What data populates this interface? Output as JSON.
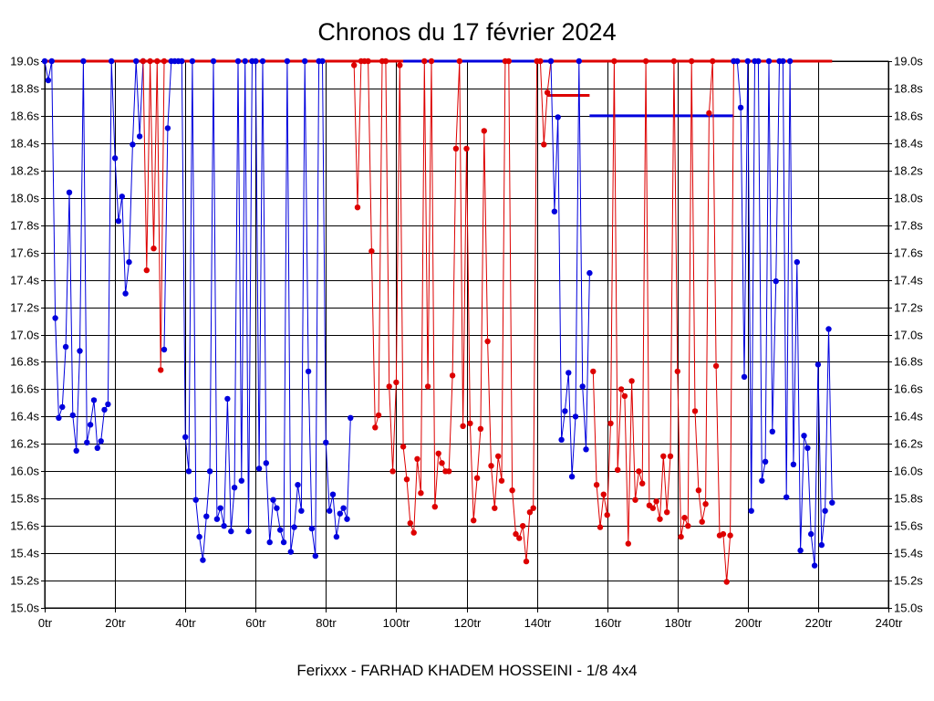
{
  "chart_data": {
    "type": "line",
    "title": "Chronos du 17 février 2024",
    "subtitle": "Ferixxx - FARHAD KHADEM HOSSEINI - 1/8 4x4",
    "x_ticks": [
      "0tr",
      "20tr",
      "40tr",
      "60tr",
      "80tr",
      "100tr",
      "120tr",
      "140tr",
      "160tr",
      "180tr",
      "200tr",
      "220tr",
      "240tr"
    ],
    "y_ticks": [
      "15.0s",
      "15.2s",
      "15.4s",
      "15.6s",
      "15.8s",
      "16.0s",
      "16.2s",
      "16.4s",
      "16.6s",
      "16.8s",
      "17.0s",
      "17.2s",
      "17.4s",
      "17.6s",
      "17.8s",
      "18.0s",
      "18.2s",
      "18.4s",
      "18.6s",
      "18.8s",
      "19.0s"
    ],
    "xlim": [
      0,
      240
    ],
    "ylim": [
      15.0,
      19.0
    ],
    "grid": true,
    "colors": {
      "blue": "#0000dd",
      "red": "#dd0000"
    },
    "series": [
      {
        "color": "blue",
        "points": [
          [
            0,
            19.0
          ],
          [
            1,
            18.86
          ],
          [
            2,
            19.0
          ],
          [
            3,
            17.12
          ],
          [
            4,
            16.39
          ],
          [
            5,
            16.47
          ],
          [
            6,
            16.91
          ],
          [
            7,
            18.04
          ],
          [
            8,
            16.41
          ],
          [
            9,
            16.15
          ],
          [
            10,
            16.88
          ],
          [
            11,
            19.0
          ],
          [
            12,
            16.21
          ],
          [
            13,
            16.34
          ],
          [
            14,
            16.52
          ],
          [
            15,
            16.17
          ],
          [
            16,
            16.22
          ],
          [
            17,
            16.45
          ],
          [
            18,
            16.49
          ],
          [
            19,
            19.0
          ],
          [
            20,
            18.29
          ],
          [
            21,
            17.83
          ],
          [
            22,
            18.01
          ],
          [
            23,
            17.3
          ],
          [
            24,
            17.53
          ],
          [
            25,
            18.39
          ],
          [
            26,
            19.0
          ],
          [
            27,
            18.45
          ],
          [
            28,
            19.0
          ]
        ]
      },
      {
        "color": "red",
        "points": [
          [
            28,
            19.0
          ],
          [
            29,
            17.47
          ],
          [
            30,
            19.0
          ],
          [
            31,
            17.63
          ],
          [
            32,
            19.0
          ],
          [
            33,
            16.74
          ],
          [
            34,
            19.0
          ]
        ]
      },
      {
        "color": "blue",
        "points": [
          [
            34,
            16.89
          ],
          [
            35,
            18.51
          ],
          [
            36,
            19.0
          ],
          [
            37,
            19.0
          ],
          [
            38,
            19.0
          ],
          [
            39,
            19.0
          ],
          [
            40,
            16.25
          ],
          [
            41,
            16.0
          ],
          [
            42,
            19.0
          ],
          [
            43,
            15.79
          ],
          [
            44,
            15.52
          ],
          [
            45,
            15.35
          ],
          [
            46,
            15.67
          ],
          [
            47,
            16.0
          ],
          [
            48,
            19.0
          ],
          [
            49,
            15.65
          ],
          [
            50,
            15.73
          ],
          [
            51,
            15.6
          ],
          [
            52,
            16.53
          ],
          [
            53,
            15.56
          ],
          [
            54,
            15.88
          ],
          [
            55,
            19.0
          ],
          [
            56,
            15.93
          ],
          [
            57,
            19.0
          ],
          [
            58,
            15.56
          ],
          [
            59,
            19.0
          ],
          [
            60,
            19.0
          ],
          [
            61,
            16.02
          ],
          [
            62,
            19.0
          ],
          [
            63,
            16.06
          ],
          [
            64,
            15.48
          ],
          [
            65,
            15.79
          ],
          [
            66,
            15.73
          ],
          [
            67,
            15.57
          ],
          [
            68,
            15.48
          ],
          [
            69,
            19.0
          ],
          [
            70,
            15.41
          ],
          [
            71,
            15.59
          ],
          [
            72,
            15.9
          ],
          [
            73,
            15.71
          ],
          [
            74,
            19.0
          ],
          [
            75,
            16.73
          ],
          [
            76,
            15.58
          ],
          [
            77,
            15.38
          ],
          [
            78,
            19.0
          ],
          [
            79,
            19.0
          ],
          [
            80,
            16.21
          ],
          [
            81,
            15.71
          ],
          [
            82,
            15.83
          ],
          [
            83,
            15.52
          ],
          [
            84,
            15.69
          ],
          [
            85,
            15.73
          ],
          [
            86,
            15.65
          ],
          [
            87,
            16.39
          ]
        ]
      },
      {
        "color": "red",
        "points": [
          [
            88,
            18.97
          ],
          [
            89,
            17.93
          ],
          [
            90,
            19.0
          ],
          [
            91,
            19.0
          ],
          [
            92,
            19.0
          ],
          [
            93,
            17.61
          ],
          [
            94,
            16.32
          ],
          [
            95,
            16.41
          ],
          [
            96,
            19.0
          ],
          [
            97,
            19.0
          ],
          [
            98,
            16.62
          ],
          [
            99,
            16.0
          ],
          [
            100,
            16.65
          ],
          [
            101,
            18.97
          ],
          [
            102,
            16.18
          ],
          [
            103,
            15.94
          ],
          [
            104,
            15.62
          ],
          [
            105,
            15.55
          ],
          [
            106,
            16.09
          ],
          [
            107,
            15.84
          ],
          [
            108,
            19.0
          ],
          [
            109,
            16.62
          ],
          [
            110,
            19.0
          ],
          [
            111,
            15.74
          ],
          [
            112,
            16.13
          ],
          [
            113,
            16.06
          ],
          [
            114,
            16.0
          ],
          [
            115,
            16.0
          ],
          [
            116,
            16.7
          ],
          [
            117,
            18.36
          ],
          [
            118,
            19.0
          ],
          [
            119,
            16.33
          ],
          [
            120,
            18.36
          ],
          [
            121,
            16.35
          ],
          [
            122,
            15.64
          ],
          [
            123,
            15.95
          ],
          [
            124,
            16.31
          ],
          [
            125,
            18.49
          ],
          [
            126,
            16.95
          ],
          [
            127,
            16.04
          ],
          [
            128,
            15.73
          ],
          [
            129,
            16.11
          ],
          [
            130,
            15.93
          ],
          [
            131,
            19.0
          ],
          [
            132,
            19.0
          ],
          [
            133,
            15.86
          ],
          [
            134,
            15.54
          ],
          [
            135,
            15.51
          ],
          [
            136,
            15.6
          ],
          [
            137,
            15.34
          ],
          [
            138,
            15.7
          ],
          [
            139,
            15.73
          ],
          [
            140,
            19.0
          ],
          [
            141,
            19.0
          ],
          [
            142,
            18.39
          ],
          [
            143,
            18.77
          ],
          [
            144,
            19.0
          ]
        ]
      },
      {
        "color": "blue",
        "points": [
          [
            144,
            19.0
          ],
          [
            145,
            17.9
          ],
          [
            146,
            18.59
          ],
          [
            147,
            16.23
          ],
          [
            148,
            16.44
          ],
          [
            149,
            16.72
          ],
          [
            150,
            15.96
          ],
          [
            151,
            16.4
          ],
          [
            152,
            19.0
          ],
          [
            153,
            16.62
          ],
          [
            154,
            16.16
          ],
          [
            155,
            17.45
          ]
        ]
      },
      {
        "color": "red",
        "points": [
          [
            156,
            16.73
          ],
          [
            157,
            15.9
          ],
          [
            158,
            15.59
          ],
          [
            159,
            15.83
          ],
          [
            160,
            15.68
          ],
          [
            161,
            16.35
          ],
          [
            162,
            19.0
          ],
          [
            163,
            16.01
          ],
          [
            164,
            16.6
          ],
          [
            165,
            16.55
          ],
          [
            166,
            15.47
          ],
          [
            167,
            16.66
          ],
          [
            168,
            15.79
          ],
          [
            169,
            16.0
          ],
          [
            170,
            15.91
          ],
          [
            171,
            19.0
          ],
          [
            172,
            15.75
          ],
          [
            173,
            15.73
          ],
          [
            174,
            15.78
          ],
          [
            175,
            15.65
          ],
          [
            176,
            16.11
          ],
          [
            177,
            15.7
          ],
          [
            178,
            16.11
          ],
          [
            179,
            19.0
          ],
          [
            180,
            16.73
          ],
          [
            181,
            15.52
          ],
          [
            182,
            15.66
          ],
          [
            183,
            15.6
          ],
          [
            184,
            19.0
          ],
          [
            185,
            16.44
          ],
          [
            186,
            15.86
          ],
          [
            187,
            15.63
          ],
          [
            188,
            15.76
          ],
          [
            189,
            18.62
          ],
          [
            190,
            19.0
          ],
          [
            191,
            16.77
          ],
          [
            192,
            15.53
          ],
          [
            193,
            15.54
          ],
          [
            194,
            15.19
          ],
          [
            195,
            15.53
          ],
          [
            196,
            19.0
          ]
        ]
      },
      {
        "color": "blue",
        "points": [
          [
            196,
            19.0
          ],
          [
            197,
            19.0
          ],
          [
            198,
            18.66
          ],
          [
            199,
            16.69
          ],
          [
            200,
            19.0
          ],
          [
            201,
            15.71
          ],
          [
            202,
            19.0
          ],
          [
            203,
            19.0
          ],
          [
            204,
            15.93
          ],
          [
            205,
            16.07
          ],
          [
            206,
            19.0
          ],
          [
            207,
            16.29
          ],
          [
            208,
            17.39
          ],
          [
            209,
            19.0
          ],
          [
            210,
            19.0
          ],
          [
            211,
            15.81
          ],
          [
            212,
            19.0
          ],
          [
            213,
            16.05
          ],
          [
            214,
            17.53
          ],
          [
            215,
            15.42
          ],
          [
            216,
            16.26
          ],
          [
            217,
            16.17
          ],
          [
            218,
            15.54
          ],
          [
            219,
            15.31
          ],
          [
            220,
            16.78
          ],
          [
            221,
            15.46
          ],
          [
            222,
            15.71
          ],
          [
            223,
            17.04
          ],
          [
            224,
            15.77
          ]
        ]
      }
    ],
    "reference_lines": [
      {
        "color": "red",
        "x": [
          0,
          224
        ],
        "y": 19.0
      },
      {
        "color": "blue",
        "x": [
          102,
          144
        ],
        "y": 19.0
      },
      {
        "color": "red",
        "x": [
          143,
          155
        ],
        "y": 18.75
      },
      {
        "color": "blue",
        "x": [
          155,
          196
        ],
        "y": 18.6
      }
    ]
  }
}
